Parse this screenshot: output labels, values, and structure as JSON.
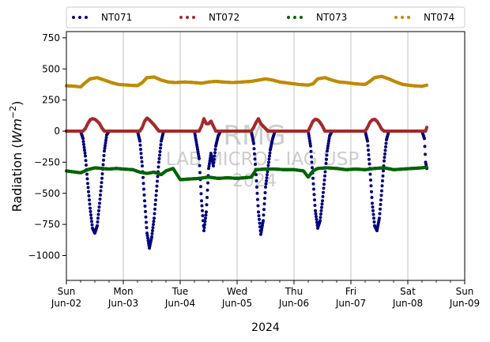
{
  "chart_data": {
    "type": "scatter",
    "ylabel_main": "Radiation (",
    "ylabel_unit": "Wm",
    "ylabel_exp": "−2",
    "ylabel_close": ")",
    "xlabel": "2024",
    "ylim": [
      -1200,
      800
    ],
    "yticks": [
      -1000,
      -750,
      -500,
      -250,
      0,
      250,
      500,
      750
    ],
    "ytick_labels": [
      "−1000",
      "−750",
      "−500",
      "−250",
      "0",
      "250",
      "500",
      "750"
    ],
    "xlim": [
      "2024-06-02T00:00",
      "2024-06-09T00:00"
    ],
    "xticks": [
      {
        "date": "2024-06-02",
        "day": "Sun",
        "label": "Jun-02"
      },
      {
        "date": "2024-06-03",
        "day": "Mon",
        "label": "Jun-03"
      },
      {
        "date": "2024-06-04",
        "day": "Tue",
        "label": "Jun-04"
      },
      {
        "date": "2024-06-05",
        "day": "Wed",
        "label": "Jun-05"
      },
      {
        "date": "2024-06-06",
        "day": "Thu",
        "label": "Jun-06"
      },
      {
        "date": "2024-06-07",
        "day": "Fri",
        "label": "Jun-07"
      },
      {
        "date": "2024-06-08",
        "day": "Sat",
        "label": "Jun-08"
      },
      {
        "date": "2024-06-09",
        "day": "Sun",
        "label": "Jun-09"
      }
    ],
    "grid": "vertical",
    "legend_position": "top",
    "watermark": [
      "RMG",
      "LAB MICRO - IAG USP",
      "2024"
    ],
    "data_end": "2024-06-08T08:00",
    "series": [
      {
        "name": "NT071",
        "color": "#00007f",
        "points": [
          [
            "2024-06-02T00:00",
            0
          ],
          [
            "2024-06-02T06:00",
            0
          ],
          [
            "2024-06-02T07:00",
            -60
          ],
          [
            "2024-06-02T08:00",
            -200
          ],
          [
            "2024-06-02T09:00",
            -420
          ],
          [
            "2024-06-02T10:00",
            -620
          ],
          [
            "2024-06-02T11:00",
            -780
          ],
          [
            "2024-06-02T12:00",
            -820
          ],
          [
            "2024-06-02T13:00",
            -760
          ],
          [
            "2024-06-02T14:00",
            -580
          ],
          [
            "2024-06-02T15:00",
            -380
          ],
          [
            "2024-06-02T16:00",
            -160
          ],
          [
            "2024-06-02T17:00",
            -30
          ],
          [
            "2024-06-02T18:00",
            0
          ],
          [
            "2024-06-03T06:00",
            0
          ],
          [
            "2024-06-03T07:00",
            -80
          ],
          [
            "2024-06-03T08:00",
            -280
          ],
          [
            "2024-06-03T09:00",
            -560
          ],
          [
            "2024-06-03T10:00",
            -820
          ],
          [
            "2024-06-03T11:00",
            -940
          ],
          [
            "2024-06-03T12:00",
            -850
          ],
          [
            "2024-06-03T13:00",
            -700
          ],
          [
            "2024-06-03T14:00",
            -480
          ],
          [
            "2024-06-03T15:00",
            -250
          ],
          [
            "2024-06-03T16:00",
            -80
          ],
          [
            "2024-06-03T17:00",
            0
          ],
          [
            "2024-06-04T06:00",
            0
          ],
          [
            "2024-06-04T08:00",
            -220
          ],
          [
            "2024-06-04T09:00",
            -560
          ],
          [
            "2024-06-04T10:00",
            -800
          ],
          [
            "2024-06-04T11:00",
            -650
          ],
          [
            "2024-06-04T12:00",
            -300
          ],
          [
            "2024-06-04T13:00",
            -180
          ],
          [
            "2024-06-04T14:00",
            -280
          ],
          [
            "2024-06-04T15:00",
            -120
          ],
          [
            "2024-06-04T16:00",
            -40
          ],
          [
            "2024-06-04T17:00",
            0
          ],
          [
            "2024-06-05T06:00",
            0
          ],
          [
            "2024-06-05T07:00",
            -100
          ],
          [
            "2024-06-05T08:00",
            -350
          ],
          [
            "2024-06-05T09:00",
            -650
          ],
          [
            "2024-06-05T10:00",
            -830
          ],
          [
            "2024-06-05T11:00",
            -720
          ],
          [
            "2024-06-05T12:00",
            -450
          ],
          [
            "2024-06-05T13:00",
            -300
          ],
          [
            "2024-06-05T14:00",
            -150
          ],
          [
            "2024-06-05T15:00",
            -60
          ],
          [
            "2024-06-05T16:00",
            0
          ],
          [
            "2024-06-06T06:00",
            0
          ],
          [
            "2024-06-06T07:00",
            -120
          ],
          [
            "2024-06-06T08:00",
            -380
          ],
          [
            "2024-06-06T09:00",
            -640
          ],
          [
            "2024-06-06T10:00",
            -780
          ],
          [
            "2024-06-06T11:00",
            -720
          ],
          [
            "2024-06-06T12:00",
            -560
          ],
          [
            "2024-06-06T13:00",
            -360
          ],
          [
            "2024-06-06T14:00",
            -160
          ],
          [
            "2024-06-06T15:00",
            -40
          ],
          [
            "2024-06-06T16:00",
            0
          ],
          [
            "2024-06-07T06:00",
            0
          ],
          [
            "2024-06-07T07:00",
            -80
          ],
          [
            "2024-06-07T08:00",
            -300
          ],
          [
            "2024-06-07T09:00",
            -580
          ],
          [
            "2024-06-07T10:00",
            -760
          ],
          [
            "2024-06-07T11:00",
            -800
          ],
          [
            "2024-06-07T12:00",
            -700
          ],
          [
            "2024-06-07T13:00",
            -480
          ],
          [
            "2024-06-07T14:00",
            -240
          ],
          [
            "2024-06-07T15:00",
            -70
          ],
          [
            "2024-06-07T16:00",
            0
          ],
          [
            "2024-06-08T06:00",
            0
          ],
          [
            "2024-06-08T07:00",
            -60
          ],
          [
            "2024-06-08T07:30",
            -250
          ],
          [
            "2024-06-08T08:00",
            -300
          ]
        ]
      },
      {
        "name": "NT072",
        "color": "#a52a2a",
        "points": [
          [
            "2024-06-02T00:00",
            0
          ],
          [
            "2024-06-02T07:00",
            0
          ],
          [
            "2024-06-02T08:00",
            20
          ],
          [
            "2024-06-02T09:00",
            60
          ],
          [
            "2024-06-02T10:00",
            90
          ],
          [
            "2024-06-02T11:00",
            100
          ],
          [
            "2024-06-02T12:00",
            95
          ],
          [
            "2024-06-02T13:00",
            80
          ],
          [
            "2024-06-02T14:00",
            60
          ],
          [
            "2024-06-02T15:00",
            25
          ],
          [
            "2024-06-02T16:00",
            0
          ],
          [
            "2024-06-03T07:00",
            0
          ],
          [
            "2024-06-03T08:00",
            30
          ],
          [
            "2024-06-03T09:00",
            80
          ],
          [
            "2024-06-03T10:00",
            105
          ],
          [
            "2024-06-03T11:00",
            90
          ],
          [
            "2024-06-03T12:00",
            70
          ],
          [
            "2024-06-03T13:00",
            50
          ],
          [
            "2024-06-03T14:00",
            25
          ],
          [
            "2024-06-03T15:00",
            0
          ],
          [
            "2024-06-04T08:00",
            0
          ],
          [
            "2024-06-04T09:00",
            40
          ],
          [
            "2024-06-04T10:00",
            100
          ],
          [
            "2024-06-04T11:00",
            60
          ],
          [
            "2024-06-04T12:00",
            60
          ],
          [
            "2024-06-04T13:00",
            80
          ],
          [
            "2024-06-04T14:00",
            40
          ],
          [
            "2024-06-04T15:00",
            0
          ],
          [
            "2024-06-05T06:00",
            0
          ],
          [
            "2024-06-05T07:00",
            30
          ],
          [
            "2024-06-05T08:00",
            70
          ],
          [
            "2024-06-05T09:00",
            100
          ],
          [
            "2024-06-05T10:00",
            60
          ],
          [
            "2024-06-05T11:00",
            40
          ],
          [
            "2024-06-05T12:00",
            20
          ],
          [
            "2024-06-05T13:00",
            0
          ],
          [
            "2024-06-06T06:00",
            0
          ],
          [
            "2024-06-06T07:00",
            40
          ],
          [
            "2024-06-06T08:00",
            80
          ],
          [
            "2024-06-06T09:00",
            95
          ],
          [
            "2024-06-06T10:00",
            90
          ],
          [
            "2024-06-06T11:00",
            70
          ],
          [
            "2024-06-06T12:00",
            40
          ],
          [
            "2024-06-06T13:00",
            0
          ],
          [
            "2024-06-07T06:00",
            0
          ],
          [
            "2024-06-07T07:00",
            30
          ],
          [
            "2024-06-07T08:00",
            70
          ],
          [
            "2024-06-07T09:00",
            90
          ],
          [
            "2024-06-07T10:00",
            95
          ],
          [
            "2024-06-07T11:00",
            80
          ],
          [
            "2024-06-07T12:00",
            50
          ],
          [
            "2024-06-07T13:00",
            15
          ],
          [
            "2024-06-07T14:00",
            0
          ],
          [
            "2024-06-08T07:30",
            0
          ],
          [
            "2024-06-08T08:00",
            30
          ]
        ]
      },
      {
        "name": "NT073",
        "color": "#006400",
        "points": [
          [
            "2024-06-02T00:00",
            -320
          ],
          [
            "2024-06-02T06:00",
            -335
          ],
          [
            "2024-06-02T09:00",
            -310
          ],
          [
            "2024-06-02T12:00",
            -295
          ],
          [
            "2024-06-02T15:00",
            -300
          ],
          [
            "2024-06-02T18:00",
            -305
          ],
          [
            "2024-06-02T21:00",
            -300
          ],
          [
            "2024-06-03T00:00",
            -305
          ],
          [
            "2024-06-03T04:00",
            -310
          ],
          [
            "2024-06-03T07:00",
            -330
          ],
          [
            "2024-06-03T10:00",
            -340
          ],
          [
            "2024-06-03T13:00",
            -330
          ],
          [
            "2024-06-03T16:00",
            -350
          ],
          [
            "2024-06-03T18:00",
            -320
          ],
          [
            "2024-06-03T21:00",
            -300
          ],
          [
            "2024-06-04T00:00",
            -390
          ],
          [
            "2024-06-04T04:00",
            -385
          ],
          [
            "2024-06-04T08:00",
            -380
          ],
          [
            "2024-06-04T12:00",
            -370
          ],
          [
            "2024-06-04T16:00",
            -380
          ],
          [
            "2024-06-04T20:00",
            -375
          ],
          [
            "2024-06-05T00:00",
            -380
          ],
          [
            "2024-06-05T06:00",
            -370
          ],
          [
            "2024-06-05T08:00",
            -310
          ],
          [
            "2024-06-05T12:00",
            -305
          ],
          [
            "2024-06-05T16:00",
            -305
          ],
          [
            "2024-06-05T20:00",
            -310
          ],
          [
            "2024-06-06T00:00",
            -310
          ],
          [
            "2024-06-06T04:00",
            -320
          ],
          [
            "2024-06-06T06:00",
            -370
          ],
          [
            "2024-06-06T08:00",
            -320
          ],
          [
            "2024-06-06T10:00",
            -300
          ],
          [
            "2024-06-06T14:00",
            -295
          ],
          [
            "2024-06-06T18:00",
            -300
          ],
          [
            "2024-06-06T22:00",
            -310
          ],
          [
            "2024-06-07T02:00",
            -305
          ],
          [
            "2024-06-07T06:00",
            -310
          ],
          [
            "2024-06-07T10:00",
            -300
          ],
          [
            "2024-06-07T14:00",
            -295
          ],
          [
            "2024-06-07T18:00",
            -310
          ],
          [
            "2024-06-07T22:00",
            -305
          ],
          [
            "2024-06-08T02:00",
            -300
          ],
          [
            "2024-06-08T06:00",
            -295
          ],
          [
            "2024-06-08T08:00",
            -290
          ]
        ]
      },
      {
        "name": "NT074",
        "color": "#c08a00",
        "points": [
          [
            "2024-06-02T00:00",
            365
          ],
          [
            "2024-06-02T04:00",
            360
          ],
          [
            "2024-06-02T06:00",
            355
          ],
          [
            "2024-06-02T08:00",
            390
          ],
          [
            "2024-06-02T10:00",
            420
          ],
          [
            "2024-06-02T13:00",
            430
          ],
          [
            "2024-06-02T16:00",
            410
          ],
          [
            "2024-06-02T19:00",
            390
          ],
          [
            "2024-06-02T22:00",
            375
          ],
          [
            "2024-06-03T02:00",
            370
          ],
          [
            "2024-06-03T06:00",
            365
          ],
          [
            "2024-06-03T08:00",
            390
          ],
          [
            "2024-06-03T10:00",
            430
          ],
          [
            "2024-06-03T13:00",
            435
          ],
          [
            "2024-06-03T16:00",
            410
          ],
          [
            "2024-06-03T19:00",
            395
          ],
          [
            "2024-06-03T22:00",
            390
          ],
          [
            "2024-06-04T02:00",
            395
          ],
          [
            "2024-06-04T06:00",
            390
          ],
          [
            "2024-06-04T09:00",
            385
          ],
          [
            "2024-06-04T12:00",
            395
          ],
          [
            "2024-06-04T15:00",
            400
          ],
          [
            "2024-06-04T18:00",
            395
          ],
          [
            "2024-06-04T22:00",
            390
          ],
          [
            "2024-06-05T02:00",
            395
          ],
          [
            "2024-06-05T06:00",
            400
          ],
          [
            "2024-06-05T09:00",
            410
          ],
          [
            "2024-06-05T12:00",
            420
          ],
          [
            "2024-06-05T15:00",
            410
          ],
          [
            "2024-06-05T18:00",
            395
          ],
          [
            "2024-06-05T22:00",
            385
          ],
          [
            "2024-06-06T02:00",
            375
          ],
          [
            "2024-06-06T06:00",
            370
          ],
          [
            "2024-06-06T08:00",
            380
          ],
          [
            "2024-06-06T10:00",
            420
          ],
          [
            "2024-06-06T13:00",
            430
          ],
          [
            "2024-06-06T16:00",
            410
          ],
          [
            "2024-06-06T19:00",
            395
          ],
          [
            "2024-06-06T22:00",
            390
          ],
          [
            "2024-06-07T02:00",
            380
          ],
          [
            "2024-06-07T06:00",
            375
          ],
          [
            "2024-06-07T08:00",
            400
          ],
          [
            "2024-06-07T10:00",
            430
          ],
          [
            "2024-06-07T13:00",
            440
          ],
          [
            "2024-06-07T16:00",
            420
          ],
          [
            "2024-06-07T19:00",
            395
          ],
          [
            "2024-06-07T22:00",
            375
          ],
          [
            "2024-06-08T02:00",
            365
          ],
          [
            "2024-06-08T06:00",
            360
          ],
          [
            "2024-06-08T08:00",
            370
          ]
        ]
      }
    ]
  }
}
